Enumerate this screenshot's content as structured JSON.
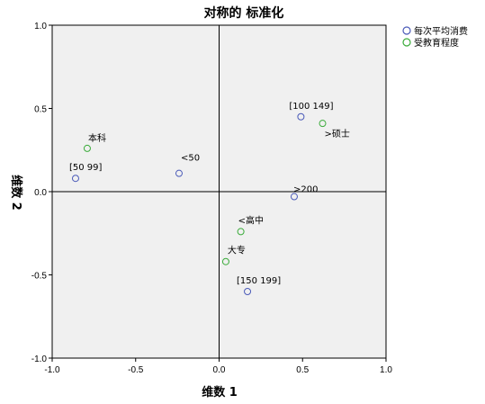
{
  "chart_data": {
    "type": "scatter",
    "title": "对称的 标准化",
    "xlabel": "维数 1",
    "ylabel": "维数 2",
    "xlim": [
      -1.0,
      1.0
    ],
    "ylim": [
      -1.0,
      1.0
    ],
    "xticks": [
      "-1.0",
      "-0.5",
      "0.0",
      "0.5",
      "1.0"
    ],
    "yticks": [
      "1.0",
      "0.5",
      "0.0",
      "-0.5",
      "-1.0"
    ],
    "grid": false,
    "reference_lines": {
      "x": 0,
      "y": 0
    },
    "legend_position": "top-right",
    "series": [
      {
        "name": "每次平均消费",
        "color": "#4a5ab8",
        "points": [
          {
            "label": "[50 99]",
            "x": -0.86,
            "y": 0.08
          },
          {
            "label": "<50",
            "x": -0.24,
            "y": 0.11
          },
          {
            "label": "[100 149]",
            "x": 0.49,
            "y": 0.45
          },
          {
            "label": ">200",
            "x": 0.45,
            "y": -0.03
          },
          {
            "label": "[150 199]",
            "x": 0.17,
            "y": -0.6
          }
        ]
      },
      {
        "name": "受教育程度",
        "color": "#3aab3a",
        "points": [
          {
            "label": "本科",
            "x": -0.79,
            "y": 0.26
          },
          {
            "label": ">硕士",
            "x": 0.62,
            "y": 0.41
          },
          {
            "label": "<高中",
            "x": 0.13,
            "y": -0.24
          },
          {
            "label": "大专",
            "x": 0.04,
            "y": -0.42
          }
        ]
      }
    ]
  }
}
